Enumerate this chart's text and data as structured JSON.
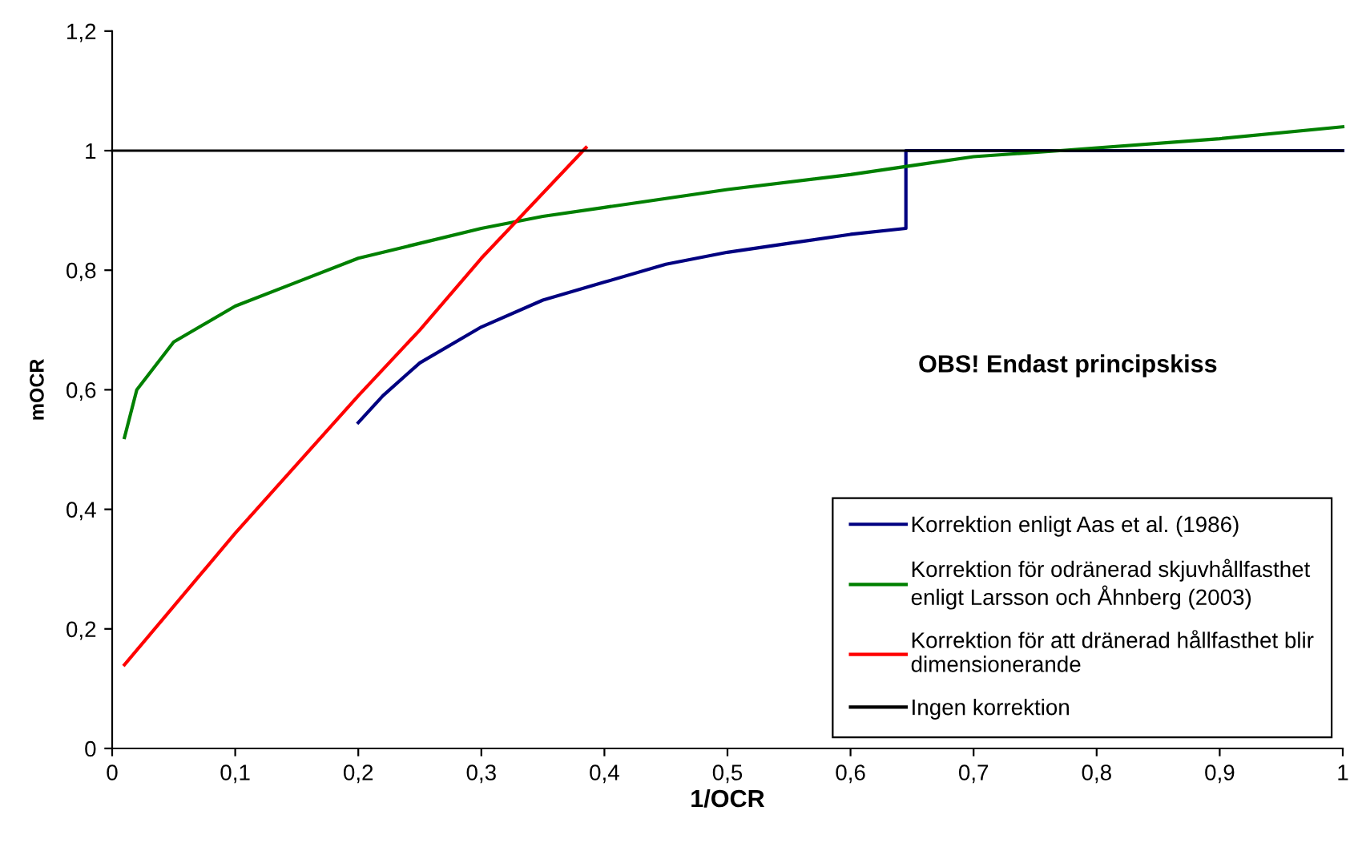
{
  "chart_data": {
    "type": "line",
    "xlabel": "1/OCR",
    "ylabel": "mOCR",
    "annotations": [
      "OBS! Endast principskiss"
    ],
    "xlim": [
      0,
      1
    ],
    "ylim": [
      0,
      1.2
    ],
    "xticks": [
      0,
      {
        "value": 0.1,
        "label": "0,1"
      },
      {
        "value": 0.2,
        "label": "0,2"
      },
      {
        "value": 0.3,
        "label": "0,3"
      },
      {
        "value": 0.4,
        "label": "0,4"
      },
      {
        "value": 0.5,
        "label": "0,5"
      },
      {
        "value": 0.6,
        "label": "0,6"
      },
      {
        "value": 0.7,
        "label": "0,7"
      },
      {
        "value": 0.8,
        "label": "0,8"
      },
      {
        "value": 0.9,
        "label": "0,9"
      },
      1
    ],
    "yticks": [
      0,
      {
        "value": 0.2,
        "label": "0,2"
      },
      {
        "value": 0.4,
        "label": "0,4"
      },
      {
        "value": 0.6,
        "label": "0,6"
      },
      {
        "value": 0.8,
        "label": "0,8"
      },
      1,
      {
        "value": 1.2,
        "label": "1,2"
      }
    ],
    "grid": false,
    "legend": "bottom right",
    "marker": "none",
    "line_style": "solid",
    "series": [
      {
        "name": "Korrektion enligt Aas et al. (1986)",
        "color": "#000080",
        "x": [
          0.2,
          0.22,
          0.25,
          0.3,
          0.35,
          0.4,
          0.45,
          0.5,
          0.55,
          0.6,
          0.645,
          0.645,
          1.0
        ],
        "values": [
          0.545,
          0.59,
          0.645,
          0.705,
          0.75,
          0.78,
          0.81,
          0.83,
          0.845,
          0.86,
          0.87,
          1.0,
          1.0
        ]
      },
      {
        "name": "Korrektion för odränerad skjuvhållfasthet\nenligt Larsson och Åhnberg (2003)",
        "color": "#008000",
        "x": [
          0.01,
          0.02,
          0.05,
          0.1,
          0.15,
          0.2,
          0.25,
          0.3,
          0.35,
          0.4,
          0.5,
          0.6,
          0.65,
          0.7,
          0.77,
          0.9,
          1.0
        ],
        "values": [
          0.52,
          0.6,
          0.68,
          0.74,
          0.78,
          0.82,
          0.845,
          0.87,
          0.89,
          0.905,
          0.935,
          0.96,
          0.975,
          0.99,
          1.0,
          1.02,
          1.04
        ]
      },
      {
        "name": "Korrektion för att dränerad hållfasthet blir\ndimensionerande",
        "color": "#ff0000",
        "x": [
          0.01,
          0.1,
          0.2,
          0.25,
          0.3,
          0.385
        ],
        "values": [
          0.14,
          0.36,
          0.59,
          0.7,
          0.82,
          1.005
        ]
      },
      {
        "name": "Ingen korrektion",
        "color": "#000000",
        "x": [
          0,
          1
        ],
        "values": [
          1,
          1
        ]
      }
    ]
  }
}
